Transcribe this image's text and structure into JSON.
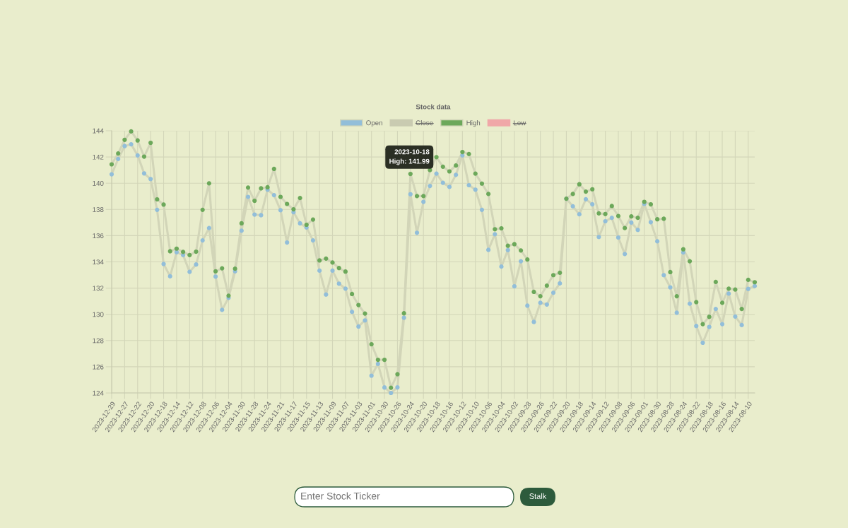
{
  "chart_data": {
    "type": "line",
    "title": "Stock data",
    "categories": [
      "2023-12-29",
      null,
      "2023-12-27",
      null,
      "2023-12-22",
      null,
      "2023-12-20",
      null,
      "2023-12-18",
      null,
      "2023-12-14",
      null,
      "2023-12-12",
      null,
      "2023-12-08",
      null,
      "2023-12-06",
      null,
      "2023-12-04",
      null,
      "2023-11-30",
      null,
      "2023-11-28",
      null,
      "2023-11-24",
      null,
      "2023-11-21",
      null,
      "2023-11-17",
      null,
      "2023-11-15",
      null,
      "2023-11-13",
      null,
      "2023-11-09",
      null,
      "2023-11-07",
      null,
      "2023-11-03",
      null,
      "2023-11-01",
      null,
      "2023-10-30",
      null,
      "2023-10-26",
      null,
      "2023-10-24",
      null,
      "2023-10-20",
      null,
      "2023-10-18",
      null,
      "2023-10-16",
      null,
      "2023-10-12",
      null,
      "2023-10-10",
      null,
      "2023-10-06",
      null,
      "2023-10-04",
      null,
      "2023-10-02",
      null,
      "2023-09-28",
      null,
      "2023-09-26",
      null,
      "2023-09-22",
      null,
      "2023-09-20",
      null,
      "2023-09-18",
      null,
      "2023-09-14",
      null,
      "2023-09-12",
      null,
      "2023-09-08",
      null,
      "2023-09-06",
      null,
      "2023-09-01",
      null,
      "2023-08-30",
      null,
      "2023-08-28",
      null,
      "2023-08-24",
      null,
      "2023-08-22",
      null,
      "2023-08-18",
      null,
      "2023-08-16",
      null,
      "2023-08-14",
      null,
      "2023-08-10",
      null
    ],
    "series": [
      {
        "name": "Open",
        "color": "#d2d5b8",
        "colors": [
          "#92bed9",
          "#92bed9",
          "#92bed9",
          "#92bed9",
          "#92bed9",
          "#92bed9",
          "#92bed9",
          "#92bed9",
          "#92bed9",
          "#92bed9",
          "#92bed9",
          "#92bed9",
          "#92bed9",
          "#92bed9",
          "#92bed9",
          "#92bed9",
          "#92bed9",
          "#92bed9",
          "#92bed9",
          "#92bed9",
          "#92bed9",
          "#92bed9",
          "#92bed9",
          "#92bed9",
          "#92bed9",
          "#92bed9",
          "#92bed9",
          "#92bed9",
          "#92bed9",
          "#92bed9",
          "#92bed9",
          "#92bed9",
          "#92bed9",
          "#92bed9",
          "#92bed9",
          "#92bed9",
          "#92bed9",
          "#92bed9",
          "#92bed9",
          "#92bed9",
          "#92bed9",
          "#92bed9",
          "#92bed9",
          "#92bed9",
          "#92bed9",
          "#92bed9",
          "#92bed9",
          "#92bed9",
          "#92bed9",
          "#92bed9",
          "#92bed9",
          "#92bed9",
          "#92bed9",
          "#92bed9",
          "#92bed9",
          "#92bed9",
          "#92bed9",
          "#92bed9",
          "#92bed9",
          "#92bed9",
          "#92bed9",
          "#92bed9",
          "#92bed9",
          "#92bed9",
          "#92bed9",
          "#92bed9",
          "#92bed9",
          "#92bed9",
          "#92bed9",
          "#92bed9",
          "#92bed9",
          "#92bed9",
          "#92bed9",
          "#92bed9",
          "#92bed9",
          "#92bed9",
          "#92bed9",
          "#92bed9",
          "#92bed9",
          "#92bed9",
          "#92bed9",
          "#92bed9",
          "#92bed9",
          "#92bed9",
          "#92bed9",
          "#92bed9",
          "#92bed9",
          "#92bed9",
          "#92bed9",
          "#92bed9",
          "#92bed9",
          "#92bed9",
          "#92bed9",
          "#92bed9",
          "#92bed9",
          "#92bed9",
          "#92bed9",
          "#92bed9",
          "#92bed9",
          "#92bed9"
        ],
        "values": [
          140.68,
          141.85,
          142.83,
          142.97,
          142.12,
          140.75,
          140.32,
          137.97,
          133.84,
          132.9,
          134.74,
          134.52,
          133.24,
          133.8,
          135.64,
          136.58,
          132.88,
          130.34,
          131.26,
          133.28,
          136.38,
          138.96,
          137.61,
          137.56,
          139.51,
          139.09,
          137.94,
          135.48,
          137.79,
          136.94,
          136.62,
          135.64,
          133.33,
          131.51,
          133.33,
          132.34,
          131.96,
          130.19,
          129.07,
          129.54,
          125.32,
          126.22,
          124.42,
          124.0,
          124.43,
          129.74,
          139.16,
          136.22,
          138.58,
          139.79,
          140.73,
          140.03,
          139.72,
          140.64,
          142.12,
          139.85,
          139.51,
          137.97,
          134.92,
          136.11,
          133.64,
          134.9,
          132.14,
          134.05,
          130.66,
          129.42,
          130.88,
          130.75,
          131.65,
          132.36,
          138.82,
          138.24,
          137.63,
          138.78,
          138.39,
          135.9,
          137.1,
          137.36,
          135.86,
          134.6,
          137.0,
          136.44,
          138.42,
          137.03,
          135.57,
          132.99,
          132.06,
          130.12,
          134.72,
          130.81,
          129.11,
          127.83,
          129.04,
          130.41,
          129.25,
          131.58,
          129.83,
          129.18,
          131.94,
          132.16
        ]
      },
      {
        "name": "Close",
        "color": "#c9cbb1",
        "values": [
          null,
          null,
          null,
          null,
          null,
          null,
          null,
          null,
          null,
          null,
          null,
          null,
          null,
          null,
          null,
          null,
          null,
          null,
          null,
          null,
          null,
          null,
          null,
          null,
          null,
          null,
          null,
          null,
          null,
          null,
          null,
          null,
          null,
          null,
          null,
          null,
          null,
          null,
          null,
          null,
          null,
          null,
          null,
          null,
          null,
          null,
          null,
          null,
          null,
          null,
          null,
          null,
          null,
          null,
          null,
          null,
          null,
          null,
          null,
          null,
          null,
          null,
          null,
          null,
          null,
          null,
          null,
          null,
          null,
          null,
          null,
          null,
          null,
          null,
          null,
          null,
          null,
          null,
          null,
          null,
          null,
          null,
          null,
          null,
          null,
          null,
          null,
          null,
          null,
          null,
          null,
          null,
          null,
          null,
          null,
          null,
          null,
          null,
          null,
          null
        ]
      },
      {
        "name": "High",
        "color": "#d2d5b8",
        "colors": [
          "#6ca85a",
          "#6ca85a",
          "#6ca85a",
          "#6ca85a",
          "#6ca85a",
          "#6ca85a",
          "#6ca85a",
          "#6ca85a",
          "#6ca85a",
          "#6ca85a",
          "#6ca85a",
          "#6ca85a",
          "#6ca85a",
          "#6ca85a",
          "#6ca85a",
          "#6ca85a",
          "#6ca85a",
          "#6ca85a",
          "#6ca85a",
          "#6ca85a",
          "#6ca85a",
          "#6ca85a",
          "#6ca85a",
          "#6ca85a",
          "#6ca85a",
          "#6ca85a",
          "#6ca85a",
          "#6ca85a",
          "#6ca85a",
          "#6ca85a",
          "#6ca85a",
          "#6ca85a",
          "#6ca85a",
          "#6ca85a",
          "#6ca85a",
          "#6ca85a",
          "#6ca85a",
          "#6ca85a",
          "#6ca85a",
          "#6ca85a",
          "#6ca85a",
          "#6ca85a",
          "#6ca85a",
          "#6ca85a",
          "#6ca85a",
          "#6ca85a",
          "#6ca85a",
          "#6ca85a",
          "#6ca85a",
          "#6ca85a",
          "#6ca85a",
          "#6ca85a",
          "#6ca85a",
          "#6ca85a",
          "#6ca85a",
          "#6ca85a",
          "#6ca85a",
          "#6ca85a",
          "#6ca85a",
          "#6ca85a",
          "#6ca85a",
          "#6ca85a",
          "#6ca85a",
          "#6ca85a",
          "#6ca85a",
          "#6ca85a",
          "#6ca85a",
          "#6ca85a",
          "#6ca85a",
          "#6ca85a",
          "#6ca85a",
          "#6ca85a",
          "#6ca85a",
          "#6ca85a",
          "#6ca85a",
          "#6ca85a",
          "#6ca85a",
          "#6ca85a",
          "#6ca85a",
          "#6ca85a",
          "#6ca85a",
          "#6ca85a",
          "#6ca85a",
          "#6ca85a",
          "#6ca85a",
          "#6ca85a",
          "#6ca85a",
          "#6ca85a",
          "#6ca85a",
          "#6ca85a",
          "#6ca85a",
          "#6ca85a",
          "#6ca85a",
          "#6ca85a",
          "#6ca85a",
          "#6ca85a",
          "#6ca85a",
          "#6ca85a",
          "#6ca85a",
          "#6ca85a"
        ],
        "values": [
          141.44,
          142.27,
          143.31,
          143.95,
          143.26,
          142.03,
          143.08,
          138.77,
          138.37,
          134.81,
          135.01,
          134.76,
          134.52,
          134.78,
          137.97,
          139.99,
          133.28,
          133.51,
          131.42,
          133.48,
          136.94,
          139.67,
          138.66,
          139.61,
          139.69,
          141.09,
          138.96,
          138.42,
          138.01,
          138.87,
          136.83,
          137.23,
          134.11,
          134.25,
          133.95,
          133.53,
          133.26,
          131.55,
          130.71,
          130.06,
          127.72,
          126.53,
          126.53,
          124.4,
          125.43,
          130.08,
          140.71,
          139.02,
          139.02,
          141.0,
          141.99,
          141.26,
          140.9,
          141.35,
          142.38,
          142.23,
          140.73,
          139.97,
          139.18,
          136.49,
          136.56,
          135.23,
          135.35,
          134.87,
          134.18,
          131.71,
          131.38,
          132.19,
          132.99,
          133.17,
          138.82,
          139.18,
          139.92,
          139.36,
          139.54,
          137.7,
          137.65,
          138.26,
          137.5,
          136.58,
          137.47,
          137.36,
          138.58,
          138.39,
          137.25,
          137.29,
          133.22,
          131.38,
          134.96,
          134.05,
          130.93,
          129.25,
          129.81,
          132.47,
          130.88,
          131.96,
          131.89,
          130.41,
          132.63,
          132.45
        ]
      },
      {
        "name": "Low",
        "color": "#f0a8a8",
        "values": [
          null,
          null,
          null,
          null,
          null,
          null,
          null,
          null,
          null,
          null,
          null,
          null,
          null,
          null,
          null,
          null,
          null,
          null,
          null,
          null,
          null,
          null,
          null,
          null,
          null,
          null,
          null,
          null,
          null,
          null,
          null,
          null,
          null,
          null,
          null,
          null,
          null,
          null,
          null,
          null,
          null,
          null,
          null,
          null,
          null,
          null,
          null,
          null,
          null,
          null,
          null,
          null,
          null,
          null,
          null,
          null,
          null,
          null,
          null,
          null,
          null,
          null,
          null,
          null,
          null,
          null,
          null,
          null,
          null,
          null,
          null,
          null,
          null,
          null,
          null,
          null,
          null,
          null,
          null,
          null,
          null,
          null,
          null,
          null,
          null,
          null,
          null,
          null,
          null,
          null,
          null,
          null,
          null,
          null,
          null,
          null,
          null,
          null,
          null,
          null
        ]
      }
    ],
    "ylim": [
      124,
      144
    ],
    "yticks": [
      124,
      126,
      128,
      130,
      132,
      134,
      136,
      138,
      140,
      142,
      144
    ],
    "grid": true,
    "legend": "top",
    "marker": "circle",
    "line_style": "solid",
    "annotations": [
      "Enter Stock Ticker",
      "Stalk",
      {
        "text": "2023-10-18\nHigh: 141.99",
        "x": "2023-10-18",
        "y": 141.99
      }
    ]
  }
}
